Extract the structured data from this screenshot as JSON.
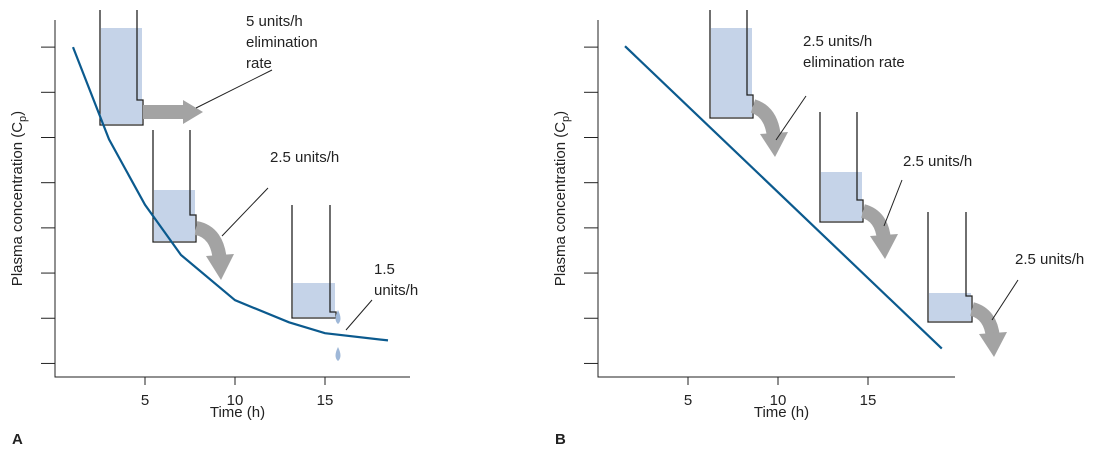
{
  "chart_data": [
    {
      "type": "line",
      "panel": "A",
      "xlabel": "Time (h)",
      "ylabel": [
        "Plasma concentration (C",
        "p",
        ")"
      ],
      "x": [
        1,
        3,
        5,
        7,
        10,
        13,
        15,
        18.5
      ],
      "series": [
        {
          "color": "#0b5a8e",
          "values": [
            8.0,
            5.96,
            4.51,
            3.4,
            2.4,
            1.91,
            1.67,
            1.51
          ]
        }
      ],
      "xlim": [
        0,
        19.5
      ],
      "xticks": [
        5,
        10,
        15
      ],
      "ylim": [
        0.7,
        8.6
      ],
      "yticks": [
        1,
        2,
        3,
        4,
        5,
        6,
        7,
        8
      ],
      "annotations": [
        [
          "5 units/h",
          "elimination",
          "rate"
        ],
        [
          "2.5 units/h"
        ],
        [
          "1.5",
          "units/h"
        ]
      ]
    },
    {
      "type": "line",
      "panel": "B",
      "xlabel": "Time (h)",
      "ylabel": [
        "Plasma concentration (C",
        "p",
        ")"
      ],
      "x": [
        1.5,
        19.1
      ],
      "series": [
        {
          "color": "#0b5a8e",
          "values": [
            8.02,
            1.33
          ]
        }
      ],
      "xlim": [
        0,
        20
      ],
      "xticks": [
        5,
        10,
        15
      ],
      "ylim": [
        0.7,
        8.6
      ],
      "yticks": [
        1,
        2,
        3,
        4,
        5,
        6,
        7,
        8
      ],
      "annotations": [
        [
          "2.5 units/h",
          "elimination rate"
        ],
        [
          "2.5 units/h"
        ],
        [
          "2.5 units/h"
        ]
      ]
    }
  ]
}
